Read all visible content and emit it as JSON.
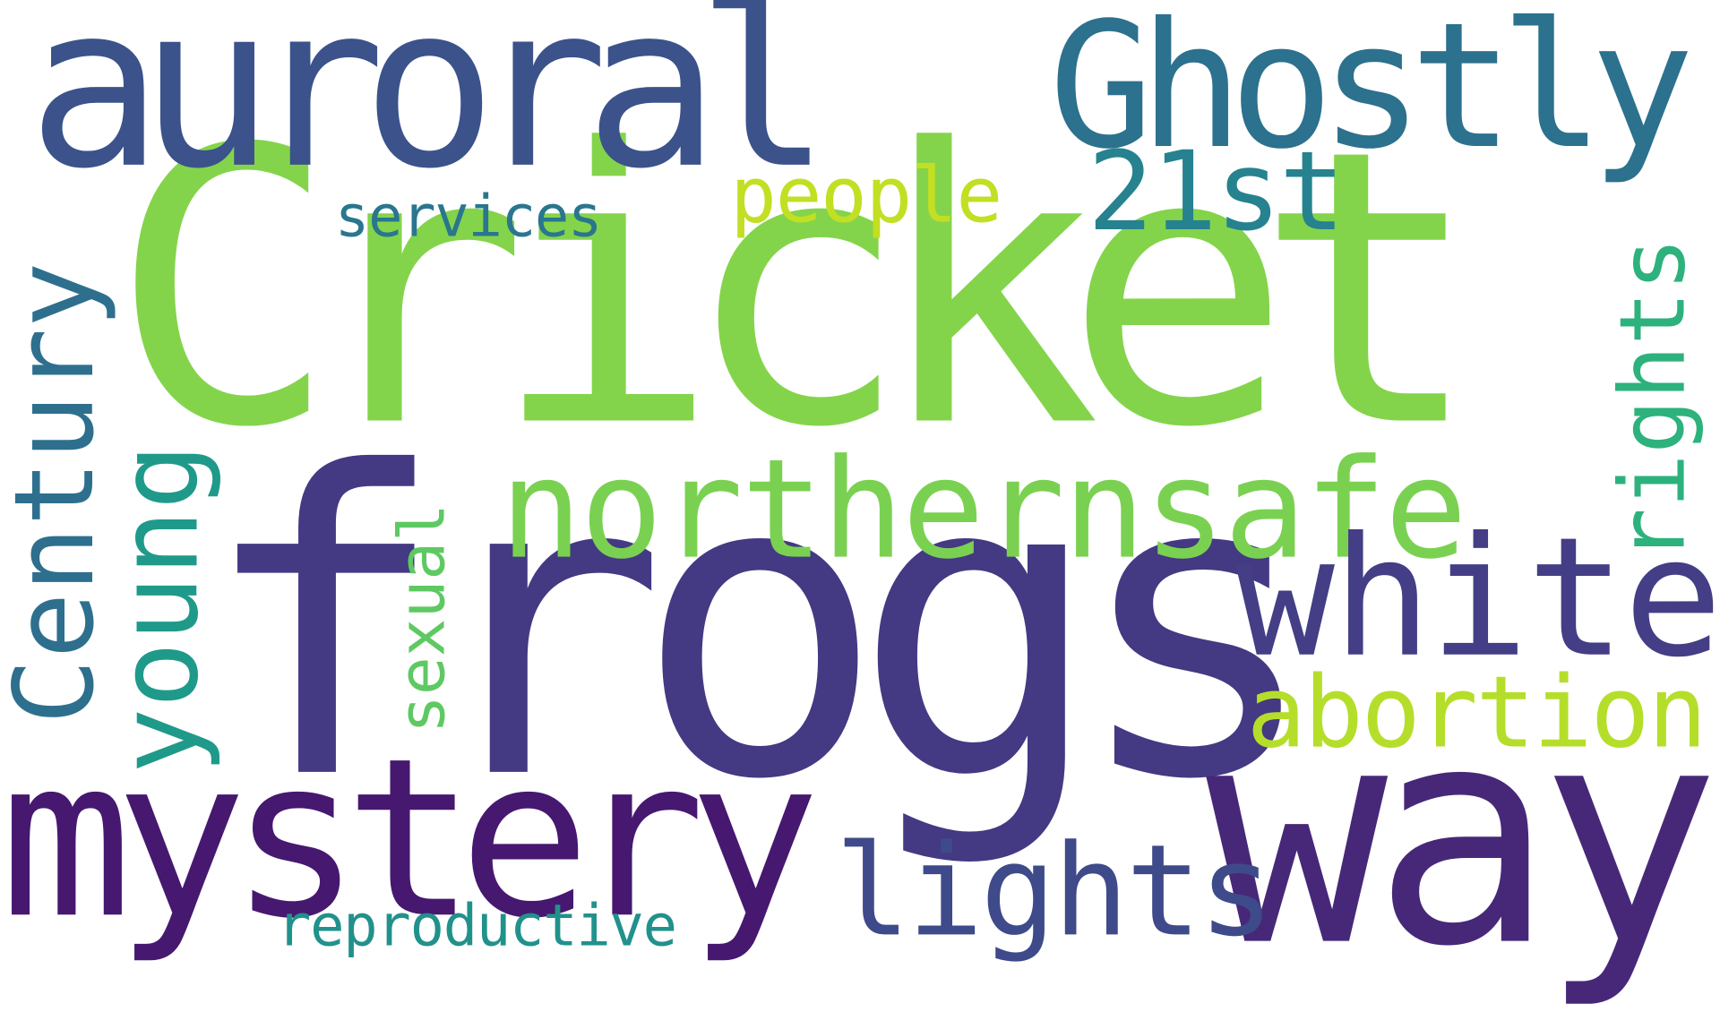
{
  "words": [
    {
      "key": "cricket",
      "text": "Cricket",
      "color": "#84d44b"
    },
    {
      "key": "frogs",
      "text": "frogs",
      "color": "#443983"
    },
    {
      "key": "auroral",
      "text": "auroral",
      "color": "#3b528b"
    },
    {
      "key": "ghostly",
      "text": "Ghostly",
      "color": "#2c718e"
    },
    {
      "key": "mystery",
      "text": "mystery",
      "color": "#46186f"
    },
    {
      "key": "way",
      "text": "way",
      "color": "#472878"
    },
    {
      "key": "northernsafe",
      "text": "northernsafe",
      "color": "#7ad151"
    },
    {
      "key": "white",
      "text": "white",
      "color": "#433e85"
    },
    {
      "key": "abortion",
      "text": "abortion",
      "color": "#b5de2b"
    },
    {
      "key": "lights",
      "text": "lights",
      "color": "#3e4a89"
    },
    {
      "key": "people",
      "text": "people",
      "color": "#c2df23"
    },
    {
      "key": "21st",
      "text": "21st",
      "color": "#26828e"
    },
    {
      "key": "services",
      "text": "services",
      "color": "#2a768e"
    },
    {
      "key": "reproductive",
      "text": "reproductive",
      "color": "#21918c"
    },
    {
      "key": "century",
      "text": "Century",
      "color": "#2e6f8e"
    },
    {
      "key": "young",
      "text": "young",
      "color": "#1f9a8a"
    },
    {
      "key": "sexual",
      "text": "sexual",
      "color": "#5ec962"
    },
    {
      "key": "rights",
      "text": "rights",
      "color": "#2db27d"
    }
  ]
}
